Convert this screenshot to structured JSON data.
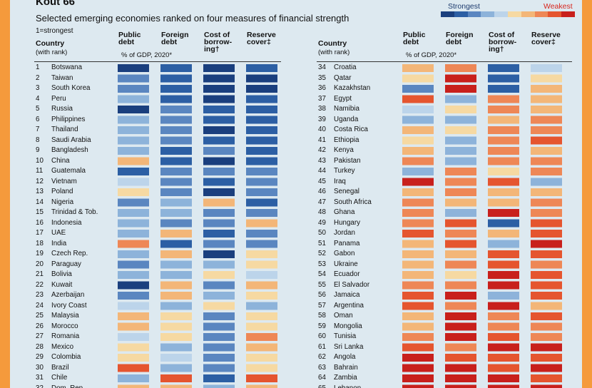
{
  "header": {
    "title": "Kout 66",
    "subtitle": "Selected emerging economies ranked on four measures of financial strength",
    "note": "1=strongest"
  },
  "legend": {
    "strongest_label": "Strongest",
    "weakest_label": "Weakest",
    "scale_colors": [
      "#1a3f7e",
      "#2c5fa4",
      "#5a86c0",
      "#8db3da",
      "#bcd4ea",
      "#f6d9a2",
      "#f3b678",
      "#ee8756",
      "#e5552f",
      "#c8201c"
    ]
  },
  "columns": {
    "country": [
      "Country",
      "(with rank)"
    ],
    "measures": [
      {
        "name": [
          "Public",
          "debt"
        ],
        "sub": "% of GDP, 2020*"
      },
      {
        "name": [
          "Foreign",
          "debt"
        ],
        "sub": ""
      },
      {
        "name": [
          "Cost of",
          "borrow-",
          "ing†"
        ],
        "sub": ""
      },
      {
        "name": [
          "Reserve",
          "cover‡"
        ],
        "sub": ""
      }
    ]
  },
  "chart_data": {
    "type": "heatmap",
    "title": "Selected emerging economies ranked on four measures of financial strength",
    "scale": "1 = strongest (dark blue), 10 = weakest (dark red)",
    "measures": [
      "Public debt, % of GDP 2020",
      "Foreign debt",
      "Cost of borrowing",
      "Reserve cover"
    ],
    "rows": [
      {
        "rank": 1,
        "country": "Botswana",
        "scores": [
          1,
          2,
          1,
          2
        ]
      },
      {
        "rank": 2,
        "country": "Taiwan",
        "scores": [
          3,
          2,
          1,
          1
        ]
      },
      {
        "rank": 3,
        "country": "South Korea",
        "scores": [
          3,
          2,
          1,
          1
        ]
      },
      {
        "rank": 4,
        "country": "Peru",
        "scores": [
          4,
          2,
          1,
          2
        ]
      },
      {
        "rank": 5,
        "country": "Russia",
        "scores": [
          1,
          3,
          2,
          2
        ]
      },
      {
        "rank": 6,
        "country": "Philippines",
        "scores": [
          4,
          3,
          2,
          2
        ]
      },
      {
        "rank": 7,
        "country": "Thailand",
        "scores": [
          4,
          3,
          1,
          2
        ]
      },
      {
        "rank": 8,
        "country": "Saudi Arabia",
        "scores": [
          4,
          3,
          2,
          2
        ]
      },
      {
        "rank": 9,
        "country": "Bangladesh",
        "scores": [
          4,
          2,
          3,
          2
        ]
      },
      {
        "rank": 10,
        "country": "China",
        "scores": [
          7,
          2,
          1,
          2
        ]
      },
      {
        "rank": 11,
        "country": "Guatemala",
        "scores": [
          2,
          3,
          3,
          3
        ]
      },
      {
        "rank": 12,
        "country": "Vietnam",
        "scores": [
          5,
          3,
          2,
          3
        ]
      },
      {
        "rank": 13,
        "country": "Poland",
        "scores": [
          6,
          3,
          1,
          3
        ]
      },
      {
        "rank": 14,
        "country": "Nigeria",
        "scores": [
          3,
          4,
          7,
          2
        ]
      },
      {
        "rank": 15,
        "country": "Trinidad & Tob.",
        "scores": [
          4,
          4,
          3,
          3
        ]
      },
      {
        "rank": 16,
        "country": "Indonesia",
        "scores": [
          4,
          3,
          3,
          7
        ]
      },
      {
        "rank": 17,
        "country": "UAE",
        "scores": [
          4,
          7,
          2,
          3
        ]
      },
      {
        "rank": 18,
        "country": "India",
        "scores": [
          8,
          2,
          3,
          3
        ]
      },
      {
        "rank": 19,
        "country": "Czech Rep.",
        "scores": [
          4,
          7,
          1,
          6
        ]
      },
      {
        "rank": 20,
        "country": "Paraguay",
        "scores": [
          3,
          4,
          4,
          6
        ]
      },
      {
        "rank": 21,
        "country": "Bolivia",
        "scores": [
          4,
          4,
          6,
          5
        ]
      },
      {
        "rank": 22,
        "country": "Kuwait",
        "scores": [
          1,
          7,
          3,
          7
        ]
      },
      {
        "rank": 23,
        "country": "Azerbaijan",
        "scores": [
          3,
          7,
          4,
          6
        ]
      },
      {
        "rank": 24,
        "country": "Ivory Coast",
        "scores": [
          5,
          4,
          6,
          4
        ]
      },
      {
        "rank": 25,
        "country": "Malaysia",
        "scores": [
          7,
          6,
          3,
          6
        ]
      },
      {
        "rank": 26,
        "country": "Morocco",
        "scores": [
          7,
          6,
          3,
          6
        ]
      },
      {
        "rank": 27,
        "country": "Romania",
        "scores": [
          5,
          6,
          3,
          8
        ]
      },
      {
        "rank": 28,
        "country": "Mexico",
        "scores": [
          6,
          4,
          3,
          7
        ]
      },
      {
        "rank": 29,
        "country": "Colombia",
        "scores": [
          6,
          5,
          3,
          6
        ]
      },
      {
        "rank": 30,
        "country": "Brazil",
        "scores": [
          9,
          4,
          3,
          6
        ]
      },
      {
        "rank": 31,
        "country": "Chile",
        "scores": [
          4,
          9,
          2,
          9
        ]
      },
      {
        "rank": 32,
        "country": "Dom. Rep.",
        "scores": [
          7,
          7,
          4,
          7
        ]
      },
      {
        "rank": 34,
        "country": "Croatia",
        "scores": [
          7,
          8,
          2,
          5
        ]
      },
      {
        "rank": 35,
        "country": "Qatar",
        "scores": [
          6,
          10,
          2,
          6
        ]
      },
      {
        "rank": 36,
        "country": "Kazakhstan",
        "scores": [
          3,
          10,
          2,
          7
        ]
      },
      {
        "rank": 37,
        "country": "Egypt",
        "scores": [
          9,
          4,
          8,
          7
        ]
      },
      {
        "rank": 38,
        "country": "Namibia",
        "scores": [
          5,
          6,
          8,
          7
        ]
      },
      {
        "rank": 39,
        "country": "Uganda",
        "scores": [
          4,
          4,
          7,
          8
        ]
      },
      {
        "rank": 40,
        "country": "Costa Rica",
        "scores": [
          7,
          6,
          8,
          8
        ]
      },
      {
        "rank": 41,
        "country": "Ethiopia",
        "scores": [
          6,
          4,
          8,
          9
        ]
      },
      {
        "rank": 42,
        "country": "Kenya",
        "scores": [
          7,
          4,
          8,
          7
        ]
      },
      {
        "rank": 43,
        "country": "Pakistan",
        "scores": [
          8,
          4,
          8,
          8
        ]
      },
      {
        "rank": 44,
        "country": "Turkey",
        "scores": [
          4,
          8,
          6,
          8
        ]
      },
      {
        "rank": 45,
        "country": "Iraq",
        "scores": [
          10,
          8,
          9,
          4
        ]
      },
      {
        "rank": 46,
        "country": "Senegal",
        "scores": [
          7,
          8,
          7,
          7
        ]
      },
      {
        "rank": 47,
        "country": "South Africa",
        "scores": [
          8,
          7,
          7,
          8
        ]
      },
      {
        "rank": 48,
        "country": "Ghana",
        "scores": [
          8,
          4,
          10,
          8
        ]
      },
      {
        "rank": 49,
        "country": "Hungary",
        "scores": [
          8,
          9,
          2,
          9
        ]
      },
      {
        "rank": 50,
        "country": "Jordan",
        "scores": [
          9,
          8,
          7,
          9
        ]
      },
      {
        "rank": 51,
        "country": "Panama",
        "scores": [
          7,
          9,
          4,
          10
        ]
      },
      {
        "rank": 52,
        "country": "Gabon",
        "scores": [
          7,
          7,
          9,
          9
        ]
      },
      {
        "rank": 53,
        "country": "Ukraine",
        "scores": [
          7,
          8,
          9,
          8
        ]
      },
      {
        "rank": 54,
        "country": "Ecuador",
        "scores": [
          7,
          6,
          10,
          9
        ]
      },
      {
        "rank": 55,
        "country": "El Salvador",
        "scores": [
          8,
          8,
          10,
          9
        ]
      },
      {
        "rank": 56,
        "country": "Jamaica",
        "scores": [
          9,
          10,
          4,
          9
        ]
      },
      {
        "rank": 57,
        "country": "Argentina",
        "scores": [
          9,
          8,
          10,
          7
        ]
      },
      {
        "rank": 58,
        "country": "Oman",
        "scores": [
          7,
          10,
          8,
          9
        ]
      },
      {
        "rank": 59,
        "country": "Mongolia",
        "scores": [
          7,
          10,
          8,
          8
        ]
      },
      {
        "rank": 60,
        "country": "Tunisia",
        "scores": [
          8,
          10,
          9,
          8
        ]
      },
      {
        "rank": 61,
        "country": "Sri Lanka",
        "scores": [
          9,
          8,
          10,
          10
        ]
      },
      {
        "rank": 62,
        "country": "Angola",
        "scores": [
          10,
          9,
          9,
          9
        ]
      },
      {
        "rank": 63,
        "country": "Bahrain",
        "scores": [
          10,
          10,
          9,
          10
        ]
      },
      {
        "rank": 64,
        "country": "Zambia",
        "scores": [
          10,
          10,
          10,
          9
        ]
      },
      {
        "rank": 65,
        "country": "Lebanon",
        "scores": [
          10,
          10,
          10,
          10
        ]
      }
    ]
  }
}
